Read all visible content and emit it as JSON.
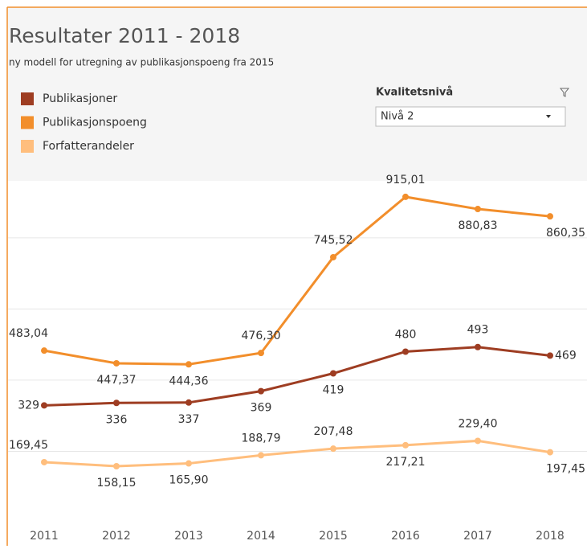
{
  "chart_data": {
    "type": "line",
    "title": "Resultater 2011 - 2018",
    "subtitle": "ny modell for utregning av publikasjonspoeng fra 2015",
    "categories": [
      "2011",
      "2012",
      "2013",
      "2014",
      "2015",
      "2016",
      "2017",
      "2018"
    ],
    "series": [
      {
        "name": "Publikasjoner",
        "color": "#9e3d22",
        "values": [
          329,
          336,
          337,
          369,
          419,
          480,
          493,
          469
        ]
      },
      {
        "name": "Publikasjonspoeng",
        "color": "#f28e2b",
        "values": [
          483.04,
          447.37,
          444.36,
          476.3,
          745.52,
          915.01,
          880.83,
          860.35
        ],
        "value_labels": [
          "483,04",
          "447,37",
          "444,36",
          "476,30",
          "745,52",
          "915,01",
          "880,83",
          "860,35"
        ]
      },
      {
        "name": "Forfatterandeler",
        "color": "#ffbe7d",
        "values": [
          169.45,
          158.15,
          165.9,
          188.79,
          207.48,
          217.21,
          229.4,
          197.45
        ],
        "value_labels": [
          "169,45",
          "158,15",
          "165,90",
          "188,79",
          "207,48",
          "217,21",
          "229,40",
          "197,45"
        ]
      }
    ],
    "ylim": [
      0,
      960
    ],
    "yticks": [
      200,
      400,
      600,
      800
    ],
    "grid": true
  },
  "filter": {
    "label": "Kvalitetsnivå",
    "value": "Nivå 2"
  }
}
